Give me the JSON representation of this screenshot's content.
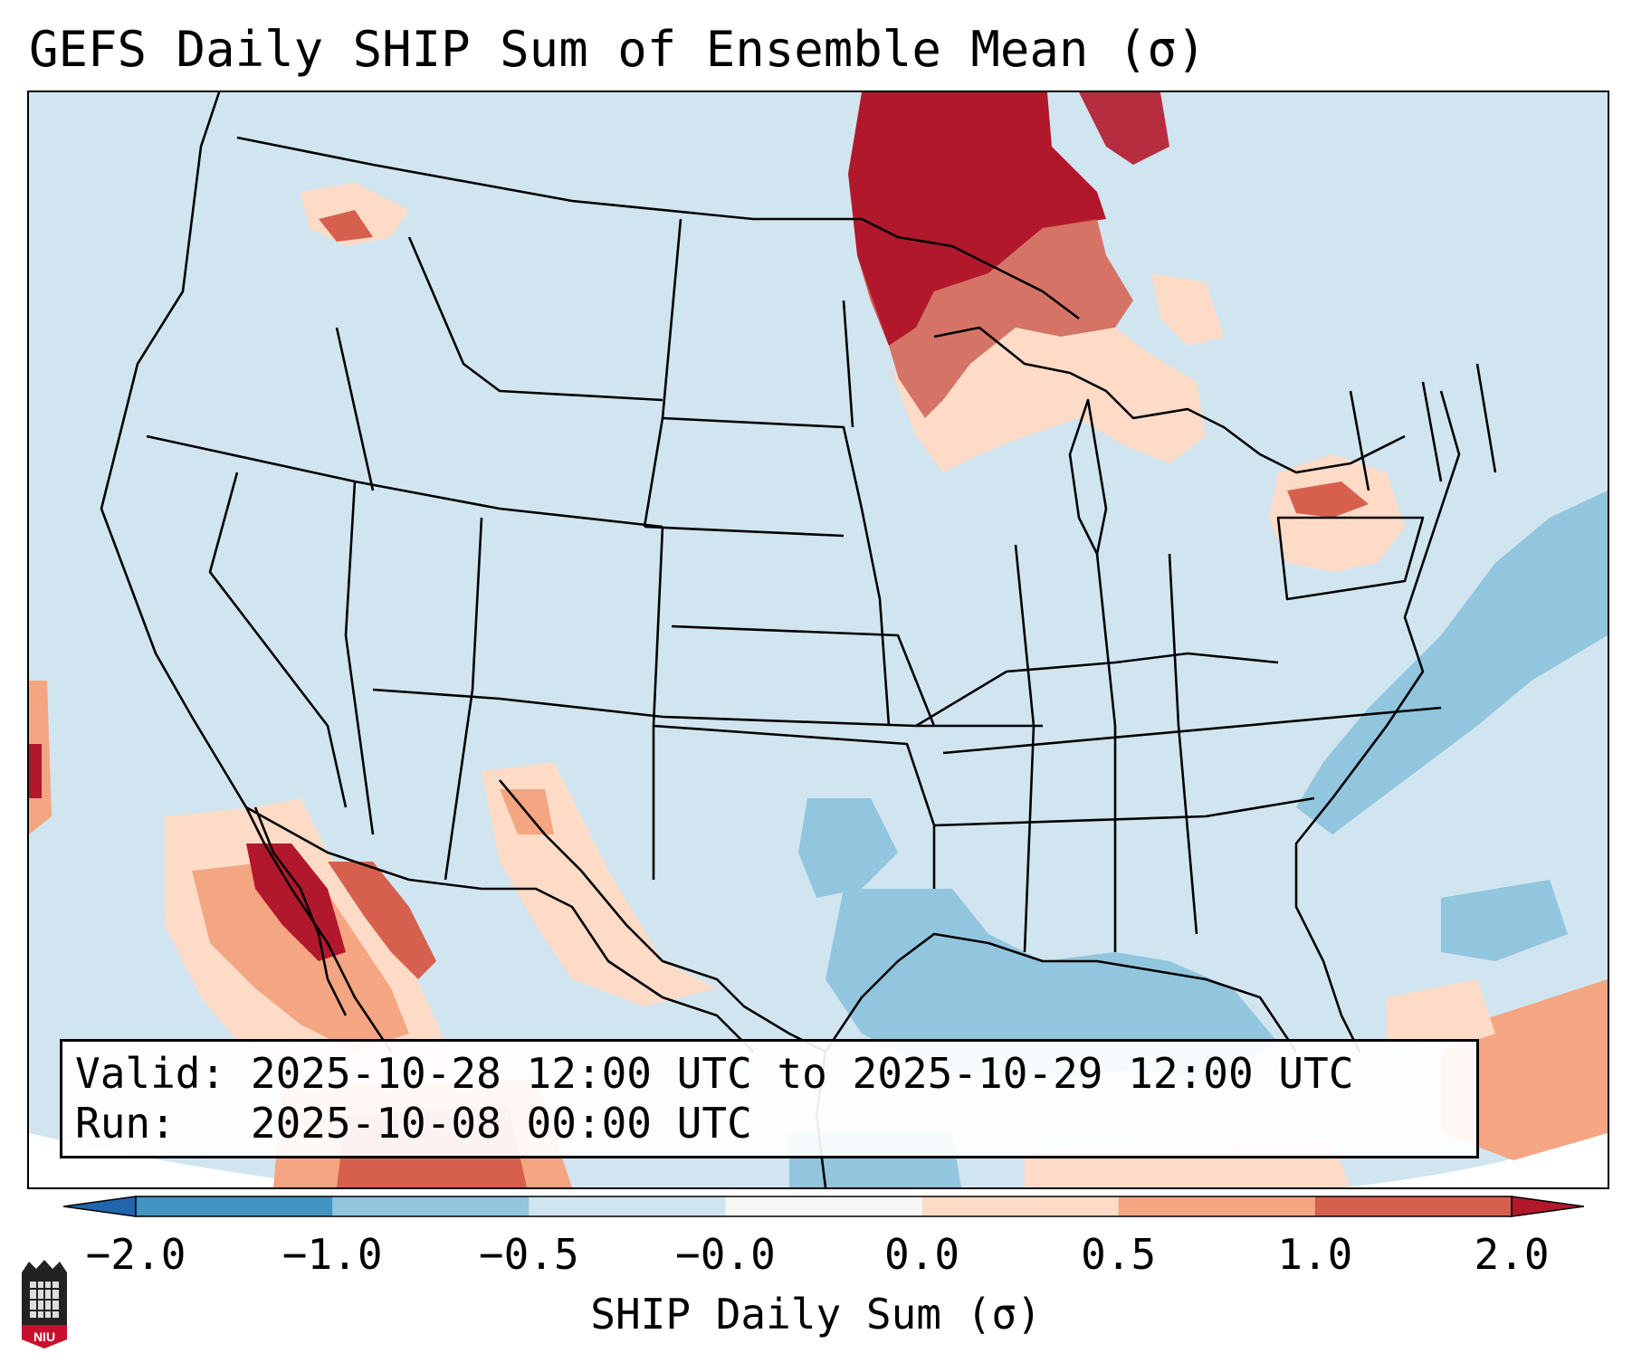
{
  "title": "GEFS Daily SHIP Sum of Ensemble Mean (σ)",
  "info": {
    "valid_label": "Valid:",
    "valid_value": "2025-10-28 12:00 UTC to 2025-10-29 12:00 UTC",
    "run_label": "Run:",
    "run_value": "2025-10-08 00:00 UTC"
  },
  "colorbar": {
    "label": "SHIP Daily Sum (σ)",
    "ticks": [
      "−2.0",
      "−1.0",
      "−0.5",
      "−0.0",
      "0.0",
      "0.5",
      "1.0",
      "2.0"
    ],
    "colors": [
      "#4393c3",
      "#92c5de",
      "#d1e5f0",
      "#f7f7f7",
      "#fddbc7",
      "#f4a582",
      "#d6604d"
    ],
    "under_color": "#2166ac",
    "over_color": "#b2182b"
  },
  "map": {
    "background_color": "#d1e5f0",
    "border_color": "#000000"
  },
  "logo": {
    "text": "NIU",
    "icon": "niu-logo-icon",
    "color": "#c8102e"
  }
}
